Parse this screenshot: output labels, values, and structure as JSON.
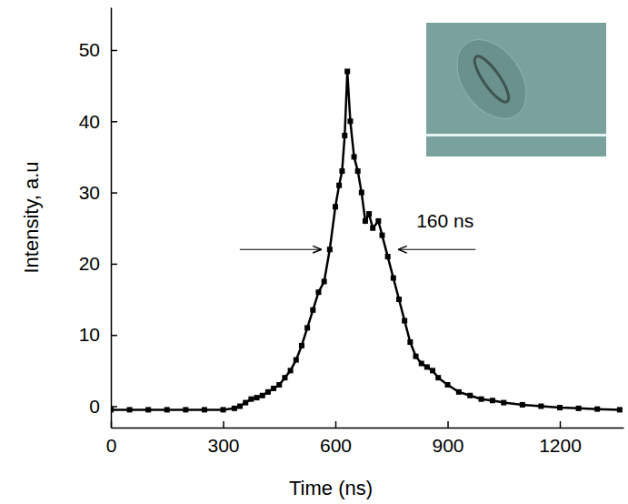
{
  "chart_data": {
    "type": "line",
    "marker": "square",
    "color": "#000000",
    "x_label": "Time (ns)",
    "y_label": "Intensity, a.u",
    "xlim": [
      0,
      1370
    ],
    "ylim": [
      -3,
      56
    ],
    "xticks": [
      0,
      300,
      600,
      900,
      1200
    ],
    "yticks": [
      0,
      10,
      20,
      30,
      40,
      50
    ],
    "x": [
      0,
      50,
      100,
      150,
      200,
      250,
      300,
      330,
      345,
      360,
      375,
      390,
      405,
      420,
      435,
      450,
      465,
      480,
      495,
      510,
      525,
      540,
      555,
      570,
      585,
      600,
      610,
      618,
      625,
      632,
      640,
      650,
      660,
      670,
      680,
      690,
      700,
      715,
      725,
      740,
      755,
      770,
      785,
      800,
      815,
      830,
      845,
      860,
      875,
      900,
      930,
      960,
      990,
      1020,
      1050,
      1100,
      1150,
      1200,
      1250,
      1300,
      1360
    ],
    "values": [
      -0.5,
      -0.5,
      -0.5,
      -0.5,
      -0.5,
      -0.5,
      -0.5,
      -0.3,
      0,
      0.5,
      1,
      1.2,
      1.5,
      2,
      2.5,
      3,
      4,
      5,
      6.5,
      8.5,
      11,
      13.5,
      16,
      17.5,
      22,
      28,
      31,
      33,
      38,
      47,
      40,
      35,
      33,
      30,
      26,
      27,
      25,
      26,
      24,
      21,
      18,
      15,
      12,
      9,
      7,
      6,
      5.5,
      5,
      4,
      3,
      2,
      1.5,
      1,
      0.8,
      0.5,
      0.2,
      0,
      -0.2,
      -0.3,
      -0.4,
      -0.5
    ],
    "annotations": [
      {
        "text": "160 ns",
        "start": 563,
        "end": 768,
        "y": 22
      }
    ]
  }
}
